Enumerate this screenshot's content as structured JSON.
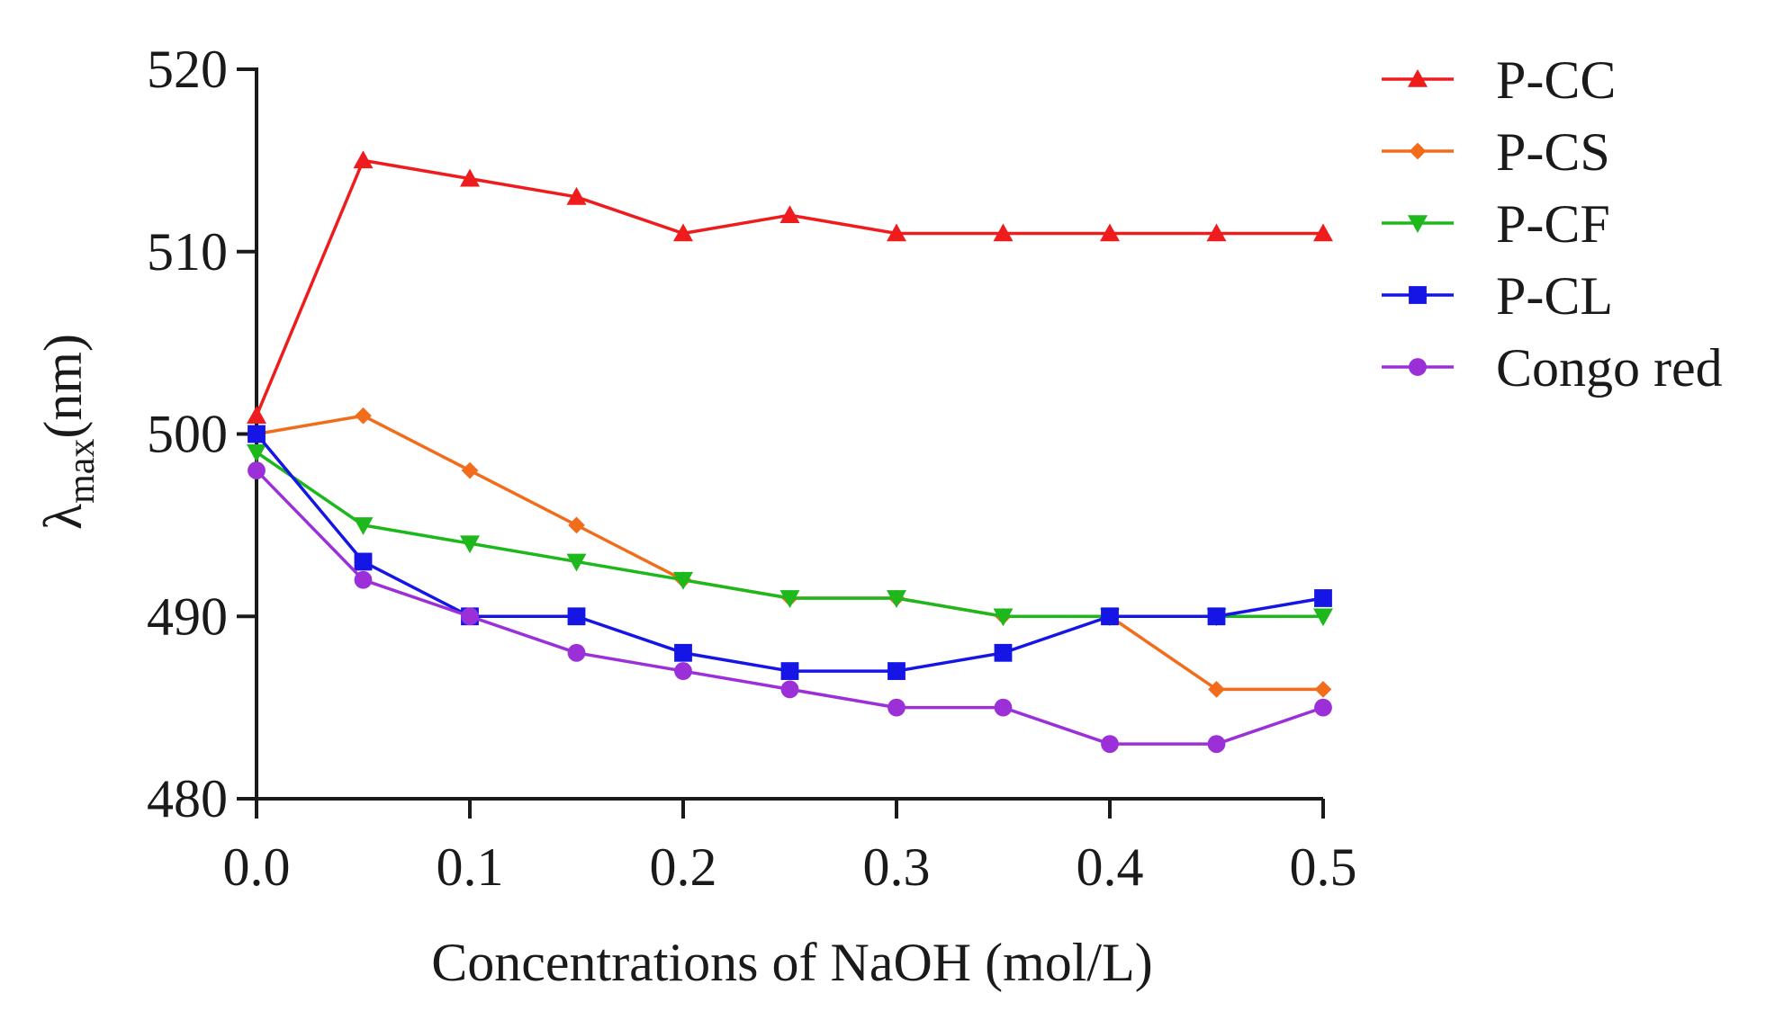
{
  "chart_data": {
    "type": "line",
    "xlabel": "Concentrations of NaOH (mol/L)",
    "ylabel": {
      "symbol": "λ",
      "subscript": "max",
      "unit": "(nm)"
    },
    "x": [
      0.0,
      0.05,
      0.1,
      0.15,
      0.2,
      0.25,
      0.3,
      0.35,
      0.4,
      0.45,
      0.5
    ],
    "xlim": [
      0,
      0.5
    ],
    "ylim": [
      480,
      520
    ],
    "xticks": [
      0.0,
      0.1,
      0.2,
      0.3,
      0.4,
      0.5
    ],
    "xtick_labels": [
      "0.0",
      "0.1",
      "0.2",
      "0.3",
      "0.4",
      "0.5"
    ],
    "yticks": [
      480,
      490,
      500,
      510,
      520
    ],
    "ytick_labels": [
      "480",
      "490",
      "500",
      "510",
      "520"
    ],
    "grid": false,
    "legend_position": "right",
    "series": [
      {
        "name": "P-CC",
        "color": "#ee1c1c",
        "marker": "triangle-up",
        "values": [
          501,
          515,
          514,
          513,
          511,
          512,
          511,
          511,
          511,
          511,
          511
        ]
      },
      {
        "name": "P-CS",
        "color": "#f26d1b",
        "marker": "diamond",
        "values": [
          500,
          501,
          498,
          495,
          492,
          491,
          491,
          490,
          490,
          486,
          486
        ]
      },
      {
        "name": "P-CF",
        "color": "#1cb81c",
        "marker": "triangle-down",
        "values": [
          499,
          495,
          494,
          493,
          492,
          491,
          491,
          490,
          490,
          490,
          490
        ]
      },
      {
        "name": "P-CL",
        "color": "#1515e6",
        "marker": "square",
        "values": [
          500,
          493,
          490,
          490,
          488,
          487,
          487,
          488,
          490,
          490,
          491
        ]
      },
      {
        "name": "Congo red",
        "color": "#9b30d9",
        "marker": "circle",
        "values": [
          498,
          492,
          490,
          488,
          487,
          486,
          485,
          485,
          483,
          483,
          485
        ]
      }
    ]
  }
}
